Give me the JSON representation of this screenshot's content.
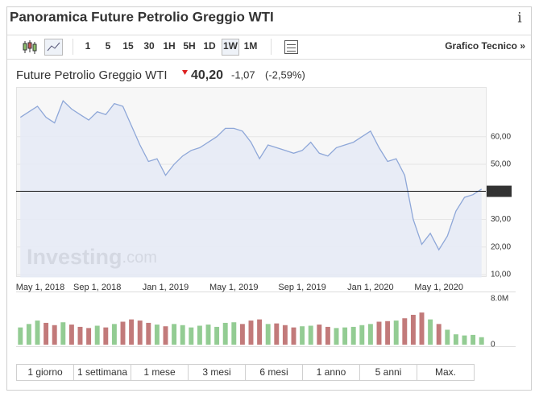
{
  "header": {
    "title": "Panoramica Future Petrolio Greggio WTI",
    "info": "i"
  },
  "toolbar": {
    "intervals": [
      "1",
      "5",
      "15",
      "30",
      "1H",
      "5H",
      "1D",
      "1W",
      "1M"
    ],
    "selected": 7,
    "link": "Grafico Tecnico »"
  },
  "quote": {
    "name": "Future Petrolio Greggio WTI",
    "price": "40,20",
    "change": "-1,07",
    "change_percent": "(-2,59%)"
  },
  "chart_data": [
    {
      "type": "area",
      "categories": [
        null,
        "May 1, 2018",
        null,
        null,
        null,
        null,
        null,
        null,
        null,
        "Sep 1, 2018",
        null,
        null,
        null,
        null,
        null,
        null,
        null,
        "Jan 1, 2019",
        null,
        null,
        null,
        null,
        null,
        null,
        null,
        "May 1, 2019",
        null,
        null,
        null,
        null,
        null,
        null,
        null,
        "Sep 1, 2019",
        null,
        null,
        null,
        null,
        null,
        null,
        null,
        "Jan 1, 2020",
        null,
        null,
        null,
        null,
        null,
        null,
        null,
        "May 1, 2020",
        null,
        null,
        null,
        null,
        null
      ],
      "values": [
        67,
        69,
        71,
        67,
        65,
        73,
        70,
        68,
        66,
        69,
        68,
        72,
        71,
        64,
        57,
        51,
        52,
        46,
        50,
        53,
        55,
        56,
        58,
        60,
        63,
        63,
        62,
        58,
        52,
        57,
        56,
        55,
        54,
        55,
        58,
        54,
        53,
        56,
        57,
        58,
        60,
        62,
        56,
        51,
        52,
        46,
        30,
        21,
        25,
        19,
        24,
        33,
        38,
        39,
        41
      ],
      "color": "#8ea7d8",
      "fill": "#e6eaf5",
      "ylim": [
        9,
        78
      ],
      "yticks": [
        {
          "value": 10,
          "label": "10,00"
        },
        {
          "value": 20,
          "label": "20,00"
        },
        {
          "value": 30,
          "label": "30,00"
        },
        {
          "value": 50,
          "label": "50,00"
        },
        {
          "value": 60,
          "label": "60,00"
        }
      ],
      "grid": true,
      "last_price": {
        "value": 40.2,
        "label": "40,20"
      },
      "watermark": [
        "Investing",
        ".com"
      ]
    },
    {
      "type": "bar",
      "values": [
        3000000,
        3600000,
        4200000,
        3800000,
        3400000,
        3900000,
        3500000,
        3100000,
        2900000,
        3300000,
        3000000,
        3600000,
        4000000,
        4400000,
        4200000,
        3800000,
        3500000,
        3200000,
        3600000,
        3400000,
        3000000,
        3300000,
        3500000,
        3100000,
        3800000,
        3900000,
        3600000,
        4200000,
        4400000,
        3600000,
        3700000,
        3400000,
        3000000,
        3200000,
        3300000,
        3500000,
        3100000,
        2900000,
        3000000,
        3100000,
        3400000,
        3600000,
        4000000,
        4100000,
        4200000,
        4600000,
        5200000,
        5600000,
        4400000,
        3600000,
        2600000,
        1800000,
        1600000,
        1700000,
        1300000
      ],
      "up_color": "#93cc93",
      "down_color": "#c27a7a",
      "ylim": [
        0,
        8000000
      ],
      "yticks": [
        0,
        {
          "value": 8000000,
          "label": "8.0M"
        }
      ]
    }
  ],
  "ranges": [
    "1 giorno",
    "1 settimana",
    "1 mese",
    "3 mesi",
    "6 mesi",
    "1 anno",
    "5 anni",
    "Max."
  ]
}
